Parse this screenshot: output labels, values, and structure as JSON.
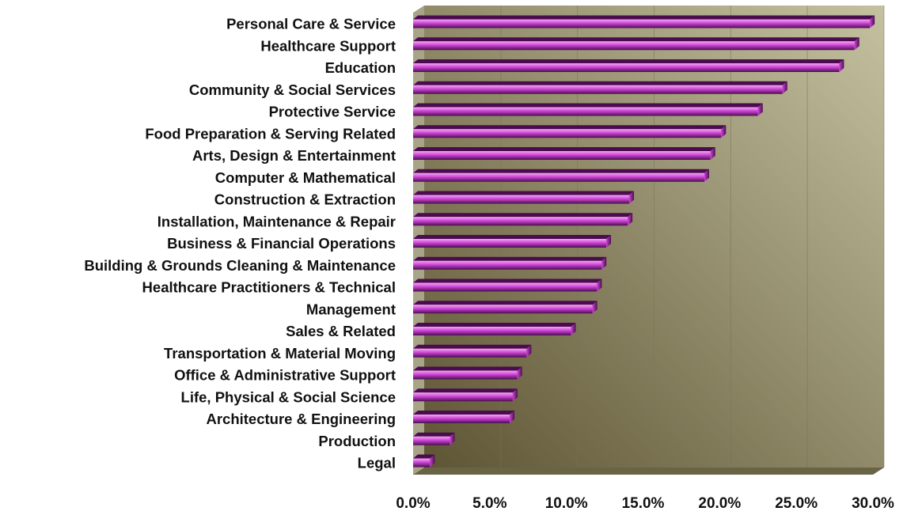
{
  "chart_data": {
    "type": "bar",
    "orientation": "horizontal",
    "title": "",
    "xlabel": "",
    "ylabel": "",
    "categories": [
      "Personal Care & Service",
      "Healthcare Support",
      "Education",
      "Community & Social Services",
      "Protective Service",
      "Food Preparation & Serving Related",
      "Arts, Design & Entertainment",
      "Computer & Mathematical",
      "Construction & Extraction",
      "Installation, Maintenance & Repair",
      "Business & Financial Operations",
      "Building  & Grounds Cleaning  & Maintenance",
      "Healthcare Practitioners & Technical",
      "Management",
      "Sales & Related",
      "Transportation & Material Moving",
      "Office & Administrative Support",
      "Life, Physical & Social Science",
      "Architecture & Engineering",
      "Production",
      "Legal"
    ],
    "values": [
      29.8,
      28.8,
      27.8,
      24.1,
      22.5,
      20.1,
      19.4,
      19.0,
      14.1,
      14.0,
      12.6,
      12.3,
      12.0,
      11.7,
      10.3,
      7.4,
      6.8,
      6.5,
      6.3,
      2.4,
      1.1
    ],
    "xlim": [
      0,
      30
    ],
    "xticks": [
      0,
      5,
      10,
      15,
      20,
      25,
      30
    ],
    "xtick_labels": [
      "0.0%",
      "5.0%",
      "10.0%",
      "15.0%",
      "20.0%",
      "25.0%",
      "30.0%"
    ],
    "grid": true,
    "legend": "none",
    "colors": {
      "bar_light": "#f4a8f6",
      "bar_mid": "#cc44d4",
      "bar_dark": "#4a0c4e",
      "back_wall_light": "#c4c1a1",
      "back_wall_dark": "#5e5534",
      "side_wall": "#a8a488",
      "floor": "#6a6446",
      "gridline": "#7a7458"
    }
  }
}
